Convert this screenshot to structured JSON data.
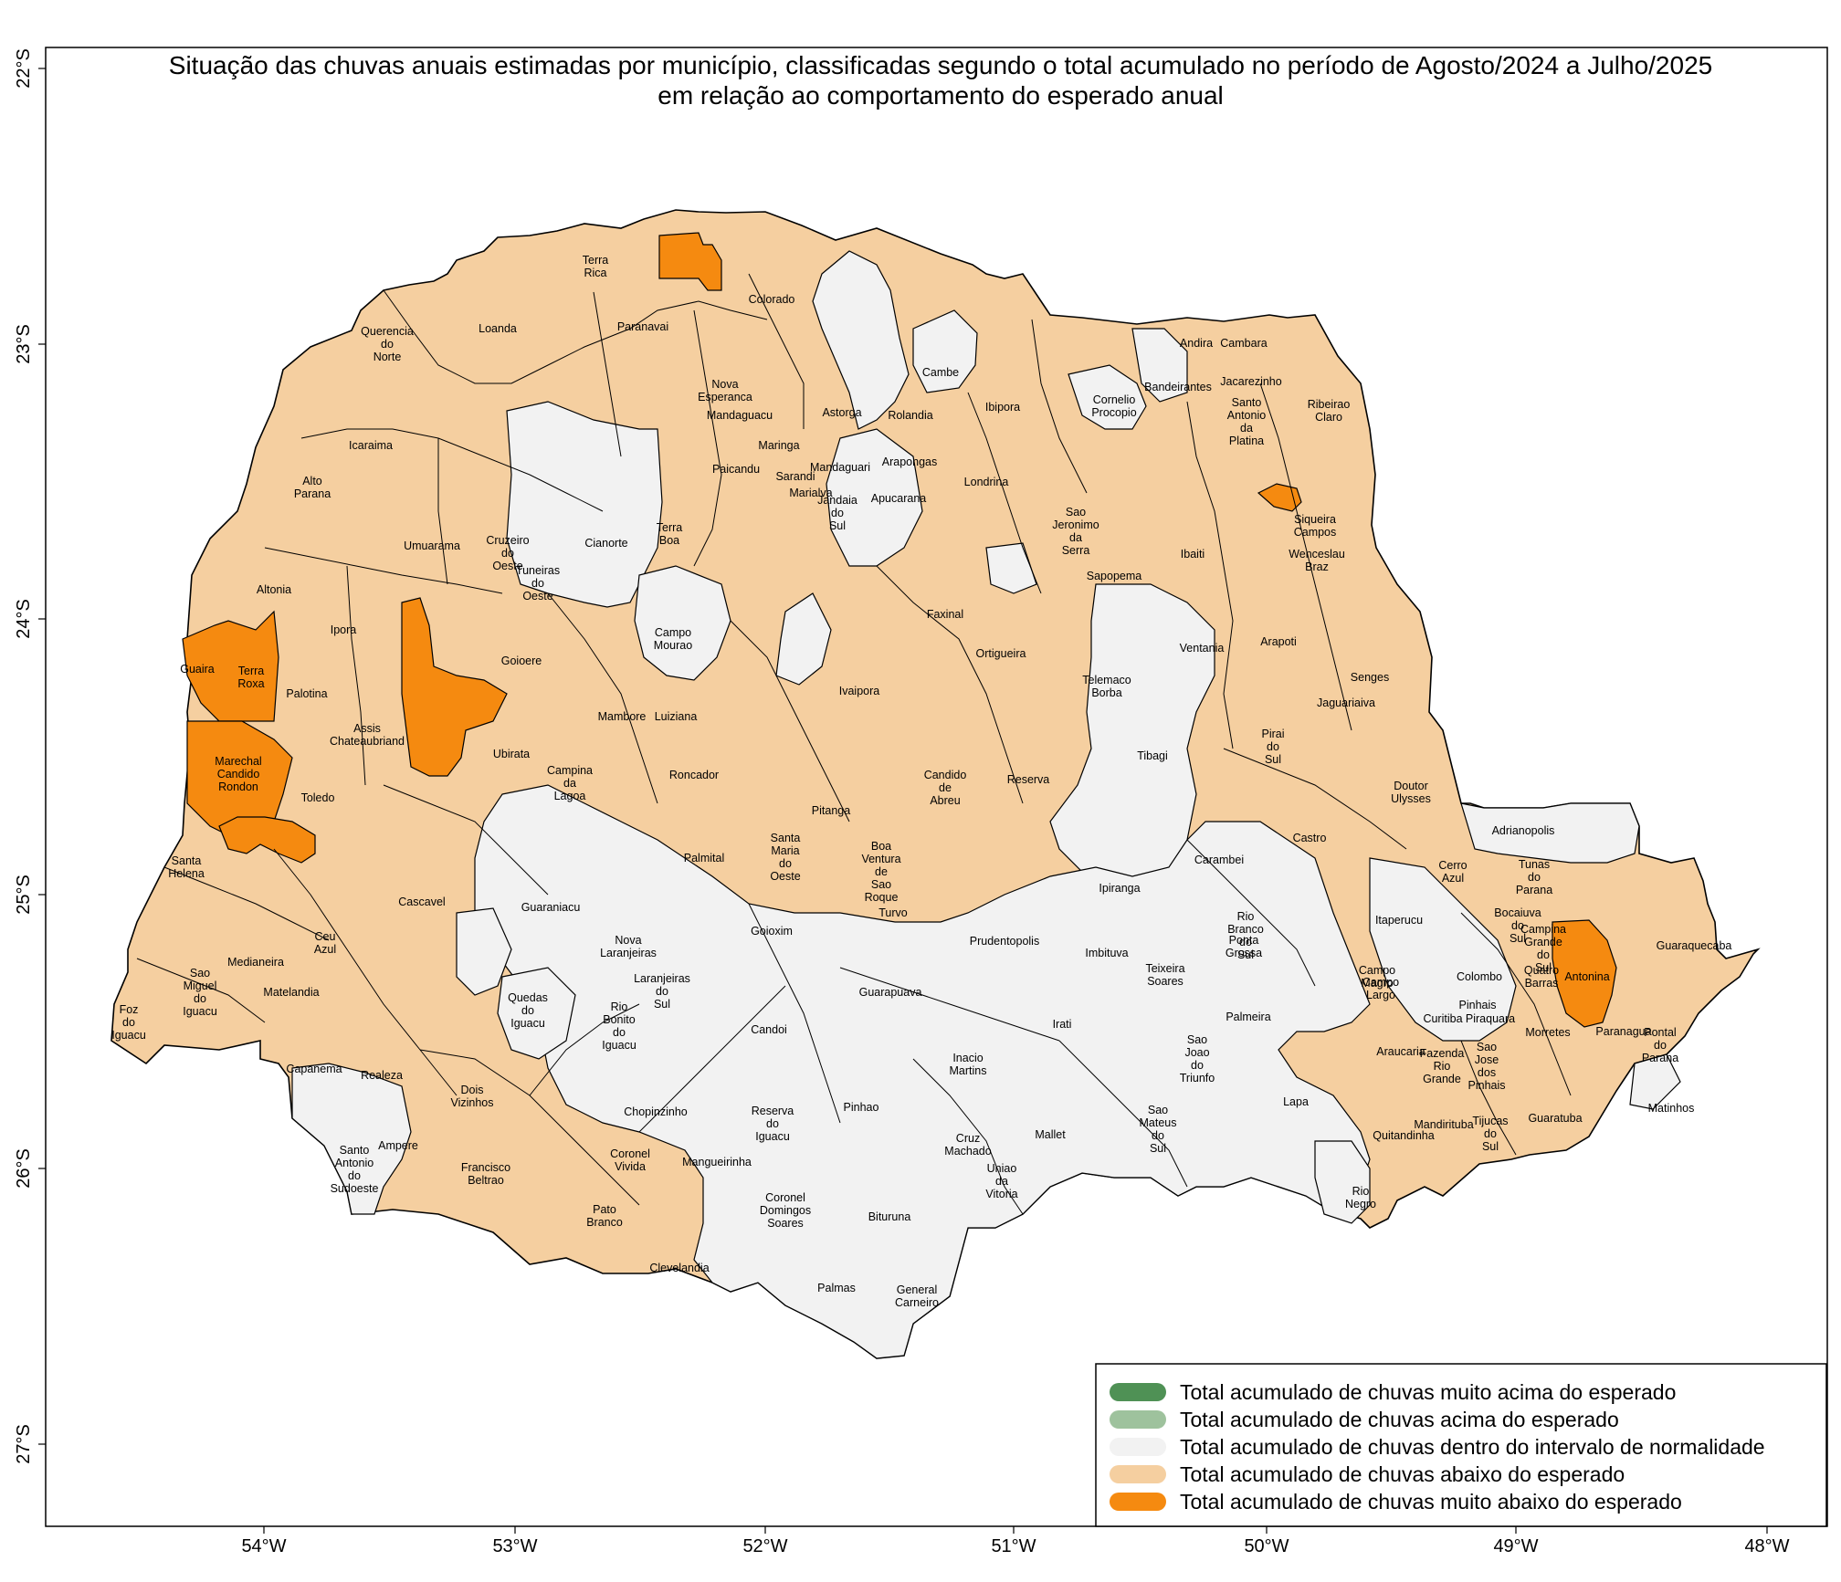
{
  "title": {
    "line1": "Situação das chuvas anuais estimadas por município, classificadas segundo o total acumulado no período de Agosto/2024 a Julho/2025",
    "line2": "em relação ao comportamento do esperado anual"
  },
  "colors": {
    "muito_acima": "#4f9155",
    "acima": "#9ec29d",
    "normal": "#f2f2f2",
    "abaixo": "#f5cfa0",
    "muito_abaixo": "#f58a10",
    "border": "#000000"
  },
  "axes": {
    "y_ticks": [
      "22°S",
      "23°S",
      "24°S",
      "25°S",
      "26°S",
      "27°S"
    ],
    "x_ticks": [
      "54°W",
      "53°W",
      "52°W",
      "51°W",
      "50°W",
      "49°W",
      "48°W"
    ]
  },
  "legend": [
    {
      "label": "Total acumulado de chuvas muito acima do esperado",
      "color": "#4f9155"
    },
    {
      "label": "Total acumulado de chuvas acima do esperado",
      "color": "#9ec29d"
    },
    {
      "label": "Total acumulado de chuvas dentro do intervalo de normalidade",
      "color": "#f2f2f2"
    },
    {
      "label": "Total acumulado de chuvas abaixo do esperado",
      "color": "#f5cfa0"
    },
    {
      "label": "Total acumulado de chuvas muito abaixo do esperado",
      "color": "#f58a10"
    }
  ],
  "municipalities": [
    "Terra Rica",
    "Colorado",
    "Paranavai",
    "Loanda",
    "Querencia do Norte",
    "Cambe",
    "Andira",
    "Cambara",
    "Bandeirantes",
    "Jacarezinho",
    "Cornelio Procopio",
    "Santo Antonio da Platina",
    "Ribeirao Claro",
    "Nova Esperanca",
    "Mandaguacu",
    "Astorga",
    "Rolandia",
    "Ibipora",
    "Icaraima",
    "Maringa",
    "Arapongas",
    "Paicandu",
    "Sarandi",
    "Mandaguari",
    "Alto Parana",
    "Marialva",
    "Jandaia do Sul",
    "Apucarana",
    "Londrina",
    "Terra Boa",
    "Cianorte",
    "Sao Jeronimo da Serra",
    "Siqueira Campos",
    "Umuarama",
    "Cruzeiro do Oeste",
    "Ibaiti",
    "Wenceslau Braz",
    "Tuneiras do Oeste",
    "Sapopema",
    "Altonia",
    "Faxinal",
    "Campo Mourao",
    "Ipora",
    "Arapoti",
    "Ventania",
    "Guaira",
    "Terra Roxa",
    "Goioere",
    "Ortigueira",
    "Telemaco Borba",
    "Senges",
    "Palotina",
    "Ivaipora",
    "Assis Chateaubriand",
    "Jaguariaiva",
    "Mambore",
    "Luiziana",
    "Pirai do Sul",
    "Ubirata",
    "Tibagi",
    "Candido de Abreu",
    "Campina da Lagoa",
    "Reserva",
    "Marechal Candido Rondon",
    "Roncador",
    "Doutor Ulysses",
    "Toledo",
    "Pitanga",
    "Castro",
    "Adrianopolis",
    "Santa Helena",
    "Palmital",
    "Santa Maria do Oeste",
    "Boa Ventura de Sao Roque",
    "Carambei",
    "Cerro Azul",
    "Tunas do Parana",
    "Ipiranga",
    "Turvo",
    "Cascavel",
    "Guaraniacu",
    "Rio Branco do Sul",
    "Ponta Grossa",
    "Itaperucu",
    "Bocaiuva do Sul",
    "Ceu Azul",
    "Goioxim",
    "Campina Grande do Sul",
    "Antonina",
    "Guaraquecaba",
    "Nova Laranjeiras",
    "Prudentopolis",
    "Imbituva",
    "Medianeira",
    "Teixeira Soares",
    "Campo Magro",
    "Campo Largo",
    "Colombo",
    "Quatro Barras",
    "Sao Miguel do Iguacu",
    "Matelandia",
    "Laranjeiras do Sul",
    "Guarapuava",
    "Curitiba",
    "Pinhais",
    "Piraquara",
    "Quedas do Iguacu",
    "Rio Bonito do Iguacu",
    "Palmeira",
    "Irati",
    "Foz do Iguacu",
    "Candoi",
    "Morretes",
    "Paranagua",
    "Pontal do Parana",
    "Araucaria",
    "Capanema",
    "Realeza",
    "Sao Jose dos Pinhais",
    "Inacio Martins",
    "Fazenda Rio Grande",
    "Sao Joao do Triunfo",
    "Dois Vizinhos",
    "Chopinzinho",
    "Pinhao",
    "Reserva do Iguacu",
    "Matinhos",
    "Lapa",
    "Guaratuba",
    "Mandirituba",
    "Quitandinha",
    "Tijucas do Sul",
    "Mallet",
    "Cruz Machado",
    "Ampere",
    "Sao Mateus do Sul",
    "Coronel Vivida",
    "Mangueirinha",
    "Francisco Beltrao",
    "Santo Antonio do Sudoeste",
    "Uniao da Vitoria",
    "Rio Negro",
    "Coronel Domingos Soares",
    "Bituruna",
    "Pato Branco",
    "Clevelandia",
    "Palmas",
    "General Carneiro"
  ]
}
